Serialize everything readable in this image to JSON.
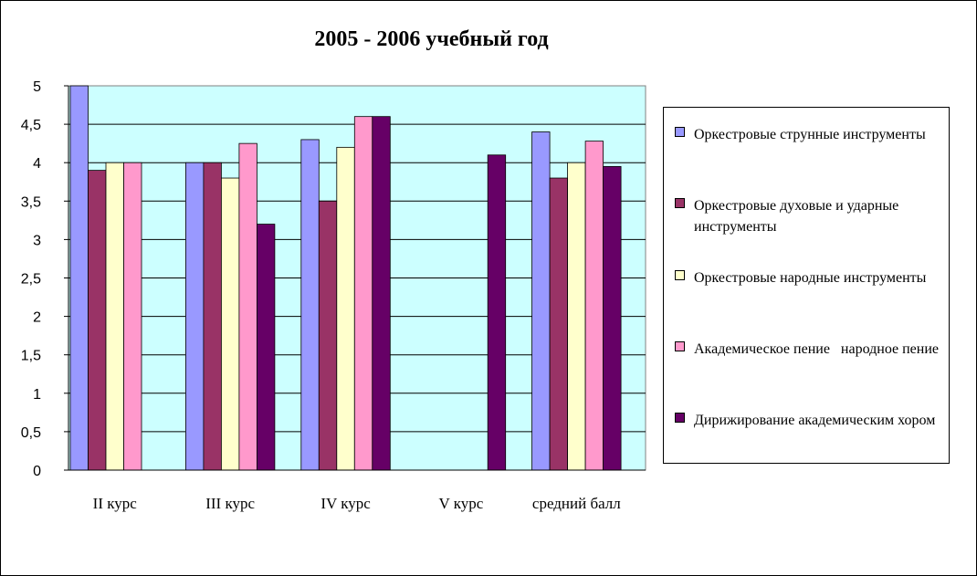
{
  "chart_data": {
    "type": "bar",
    "title": "2005 - 2006 учебный год",
    "categories": [
      "II  курс",
      "III  курс",
      "IV  курс",
      "V  курс",
      "средний балл"
    ],
    "ylim": [
      0,
      5
    ],
    "yticks": [
      "0",
      "0,5",
      "1",
      "1,5",
      "2",
      "2,5",
      "3",
      "3,5",
      "4",
      "4,5",
      "5"
    ],
    "grid": true,
    "legend_position": "right",
    "plot_background": "#ccffff",
    "series": [
      {
        "name": "Оркестровые струнные инструменты",
        "color": "#9999ff",
        "values": [
          5.0,
          4.0,
          4.3,
          null,
          4.4
        ]
      },
      {
        "name": "Оркестровые духовые и ударные инструменты",
        "color": "#993366",
        "values": [
          3.9,
          4.0,
          3.5,
          null,
          3.8
        ]
      },
      {
        "name": "Оркестровые народные инструменты",
        "color": "#ffffcc",
        "values": [
          4.0,
          3.8,
          4.2,
          null,
          4.0
        ]
      },
      {
        "name": "Академическое пение   народное пение",
        "color": "#ff99cc",
        "values": [
          4.0,
          4.25,
          4.6,
          null,
          4.28
        ]
      },
      {
        "name": "Дирижирование академическим хором",
        "color": "#660066",
        "values": [
          null,
          3.2,
          4.6,
          4.1,
          3.95
        ]
      }
    ]
  }
}
